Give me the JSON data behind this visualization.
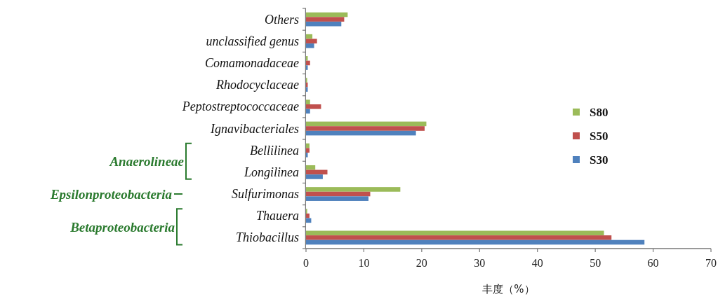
{
  "chart_data": {
    "type": "bar",
    "orientation": "horizontal",
    "xlabel": "丰度（%）",
    "categories": [
      "Others",
      "unclassified genus",
      "Comamonadaceae",
      "Rhodocyclaceae",
      "Peptostreptococcaceae",
      "Ignavibacteriales",
      "Bellilinea",
      "Longilinea",
      "Sulfurimonas",
      "Thauera",
      "Thiobacillus"
    ],
    "series": [
      {
        "name": "S80",
        "color": "#9bbb59",
        "values": [
          7.2,
          1.1,
          0.3,
          0.2,
          0.7,
          20.8,
          0.6,
          1.6,
          16.3,
          0.2,
          51.5
        ]
      },
      {
        "name": "S50",
        "color": "#c0504d",
        "values": [
          6.6,
          1.9,
          0.7,
          0.3,
          2.6,
          20.5,
          0.6,
          3.7,
          11.1,
          0.6,
          52.8
        ]
      },
      {
        "name": "S30",
        "color": "#4f81bd",
        "values": [
          6.1,
          1.4,
          0.3,
          0.3,
          0.7,
          19.0,
          0.3,
          2.9,
          10.8,
          0.9,
          58.5
        ]
      }
    ],
    "annotations": [
      "Anaerolineae",
      "Epsilonproteobacteria",
      "Betaproteobacteria"
    ],
    "xlim": [
      0,
      70
    ],
    "xticks": [
      0,
      10,
      20,
      30,
      40,
      50,
      60,
      70
    ],
    "grid": false,
    "legend": "right"
  }
}
